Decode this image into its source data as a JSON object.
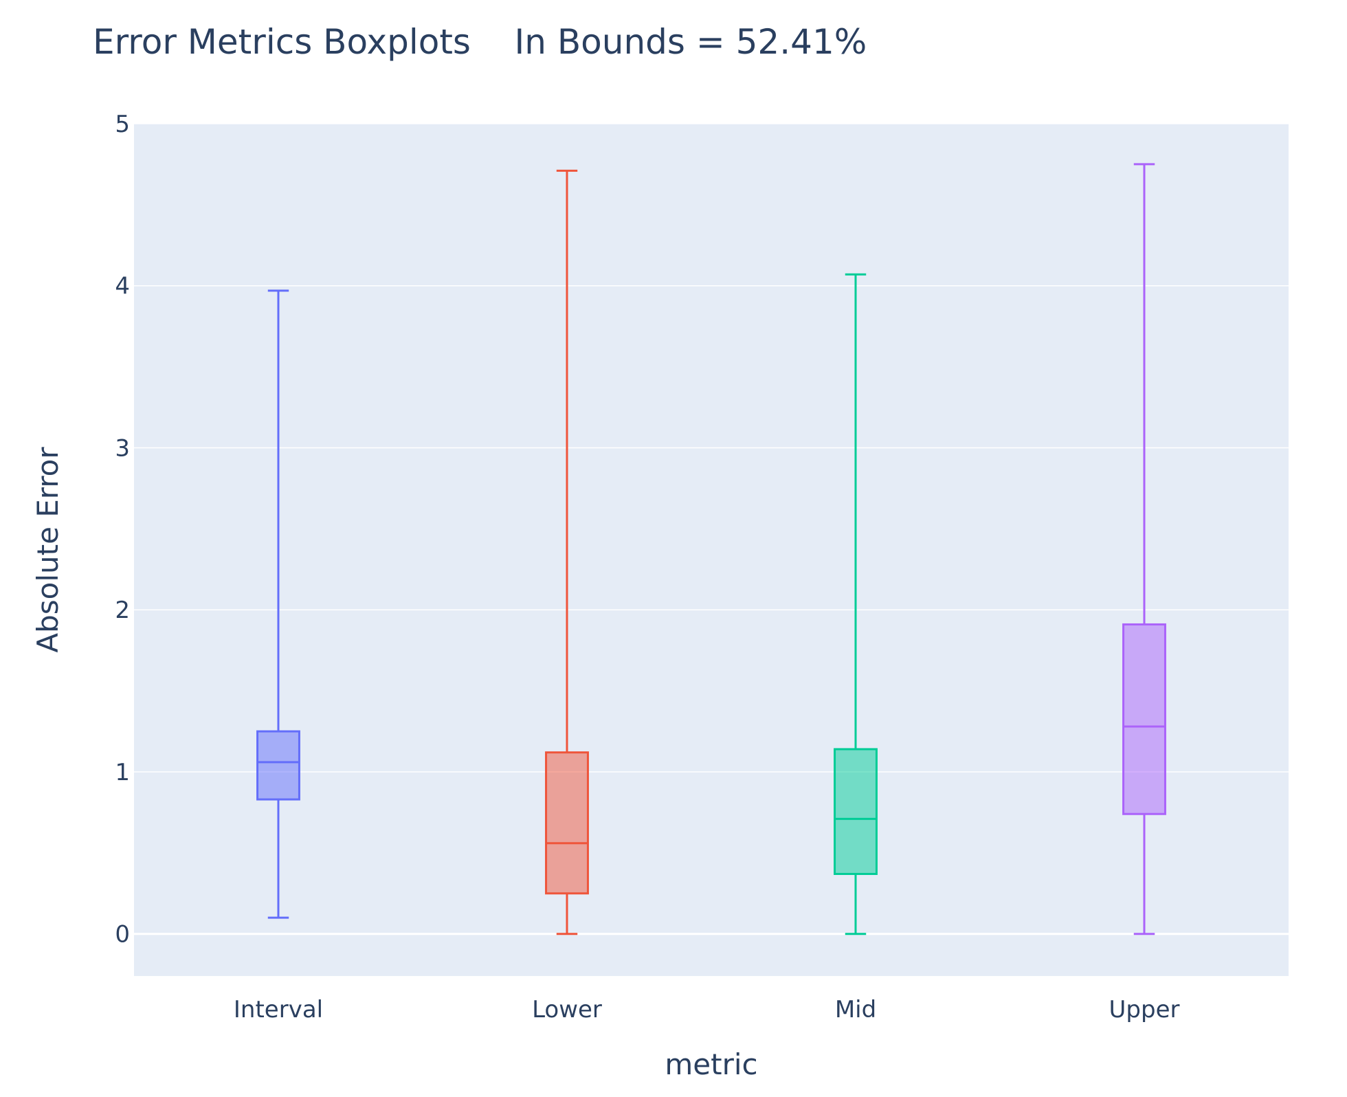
{
  "chart_data": {
    "type": "box",
    "title": "Error Metrics Boxplots    In Bounds = 52.41%",
    "xlabel": "metric",
    "ylabel": "Absolute Error",
    "categories": [
      "Interval",
      "Lower",
      "Mid",
      "Upper"
    ],
    "ylim": [
      -0.26,
      5.0
    ],
    "yticks": [
      0,
      1,
      2,
      3,
      4,
      5
    ],
    "grid": true,
    "legend": "none",
    "series": [
      {
        "category": "Interval",
        "color": "#636efa",
        "min": 0.1,
        "q1": 0.83,
        "median": 1.06,
        "q3": 1.25,
        "max": 3.97
      },
      {
        "category": "Lower",
        "color": "#ef553b",
        "min": 0.0,
        "q1": 0.25,
        "median": 0.56,
        "q3": 1.12,
        "max": 4.71
      },
      {
        "category": "Mid",
        "color": "#00cc96",
        "min": 0.0,
        "q1": 0.37,
        "median": 0.71,
        "q3": 1.14,
        "max": 4.07
      },
      {
        "category": "Upper",
        "color": "#ab63fa",
        "min": 0.0,
        "q1": 0.74,
        "median": 1.28,
        "q3": 1.91,
        "max": 4.75
      }
    ]
  }
}
